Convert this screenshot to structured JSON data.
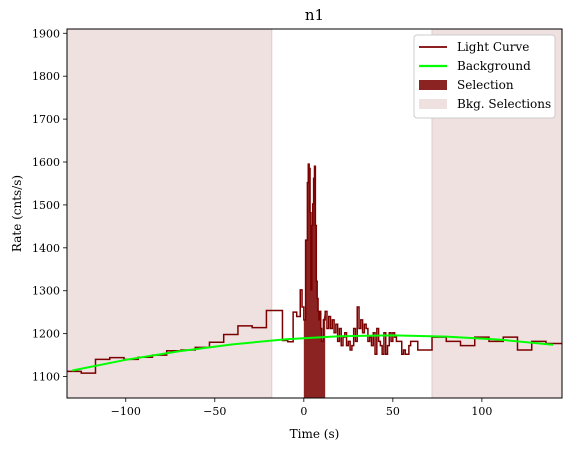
{
  "chart_data": {
    "type": "line",
    "title": "n1",
    "xlabel": "Time (s)",
    "ylabel": "Rate (cnts/s)",
    "xlim": [
      -133,
      145
    ],
    "ylim": [
      1050,
      1910
    ],
    "x_ticks": [
      -100,
      -50,
      0,
      50,
      100
    ],
    "x_tick_labels": [
      "−100",
      "−50",
      "0",
      "50",
      "100"
    ],
    "y_ticks": [
      1100,
      1200,
      1300,
      1400,
      1500,
      1600,
      1700,
      1800,
      1900
    ],
    "y_tick_labels": [
      "1100",
      "1200",
      "1300",
      "1400",
      "1500",
      "1600",
      "1700",
      "1800",
      "1900"
    ],
    "grid": false,
    "legend_position": "top-right",
    "legend": [
      {
        "label": "Light Curve",
        "kind": "line",
        "color": "#7b0000"
      },
      {
        "label": "Background",
        "kind": "line",
        "color": "#00ff00"
      },
      {
        "label": "Selection",
        "kind": "patch",
        "color": "#8b2323"
      },
      {
        "label": "Bkg. Selections",
        "kind": "patch",
        "color": "#f0e1e1"
      }
    ],
    "series": [
      {
        "name": "Light Curve",
        "step": "post",
        "color": "#7b0000",
        "x": [
          -133,
          -125,
          -117,
          -109,
          -101,
          -93,
          -85,
          -77,
          -69,
          -61,
          -53,
          -45,
          -37,
          -29,
          -21,
          -12,
          -9,
          -6,
          -4,
          -2,
          -1,
          0,
          1,
          2,
          2.5,
          3,
          3.5,
          4,
          4.5,
          5,
          5.5,
          6,
          6.5,
          7,
          7.5,
          8,
          8.5,
          9,
          9.5,
          10,
          11,
          12,
          13,
          14,
          15,
          16,
          17,
          18,
          19,
          20,
          21,
          22,
          23,
          24,
          25,
          26,
          27,
          28,
          29,
          30,
          31,
          32,
          33,
          34,
          35,
          36,
          37,
          38,
          39,
          40,
          41,
          42,
          43,
          44,
          45,
          46,
          47,
          48,
          49,
          50,
          51,
          52,
          53,
          54,
          55,
          56,
          57,
          58,
          59,
          60,
          64,
          72,
          80,
          88,
          96,
          104,
          112,
          120,
          128,
          136,
          145
        ],
        "y": [
          1112,
          1108,
          1140,
          1144,
          1140,
          1145,
          1150,
          1160,
          1162,
          1168,
          1180,
          1198,
          1218,
          1214,
          1254,
          1184,
          1181,
          1250,
          1240,
          1302,
          1262,
          1232,
          1418,
          1552,
          1595,
          1585,
          1482,
          1302,
          1452,
          1502,
          1562,
          1590,
          1452,
          1322,
          1282,
          1252,
          1232,
          1252,
          1212,
          1182,
          1232,
          1252,
          1212,
          1240,
          1212,
          1232,
          1202,
          1222,
          1182,
          1212,
          1172,
          1192,
          1202,
          1172,
          1182,
          1162,
          1172,
          1212,
          1182,
          1262,
          1212,
          1232,
          1202,
          1222,
          1212,
          1182,
          1192,
          1172,
          1202,
          1152,
          1212,
          1182,
          1172,
          1152,
          1202,
          1152,
          1172,
          1202,
          1182,
          1202,
          1192,
          1182,
          1182,
          1182,
          1152,
          1162,
          1152,
          1152,
          1172,
          1182,
          1162,
          1192,
          1182,
          1172,
          1192,
          1182,
          1192,
          1162,
          1182,
          1177,
          1177
        ]
      },
      {
        "name": "Background",
        "color": "#00ff00",
        "model": "quadratic",
        "x": [
          -130,
          -100,
          -70,
          -40,
          -10,
          20,
          50,
          80,
          110,
          140
        ],
        "y": [
          1114,
          1139,
          1159,
          1175,
          1187,
          1194,
          1196,
          1193,
          1186,
          1174
        ]
      }
    ],
    "selection_intervals": [
      [
        0,
        12
      ]
    ],
    "bkg_selection_intervals": [
      [
        -133,
        -18
      ],
      [
        72,
        145
      ]
    ]
  }
}
